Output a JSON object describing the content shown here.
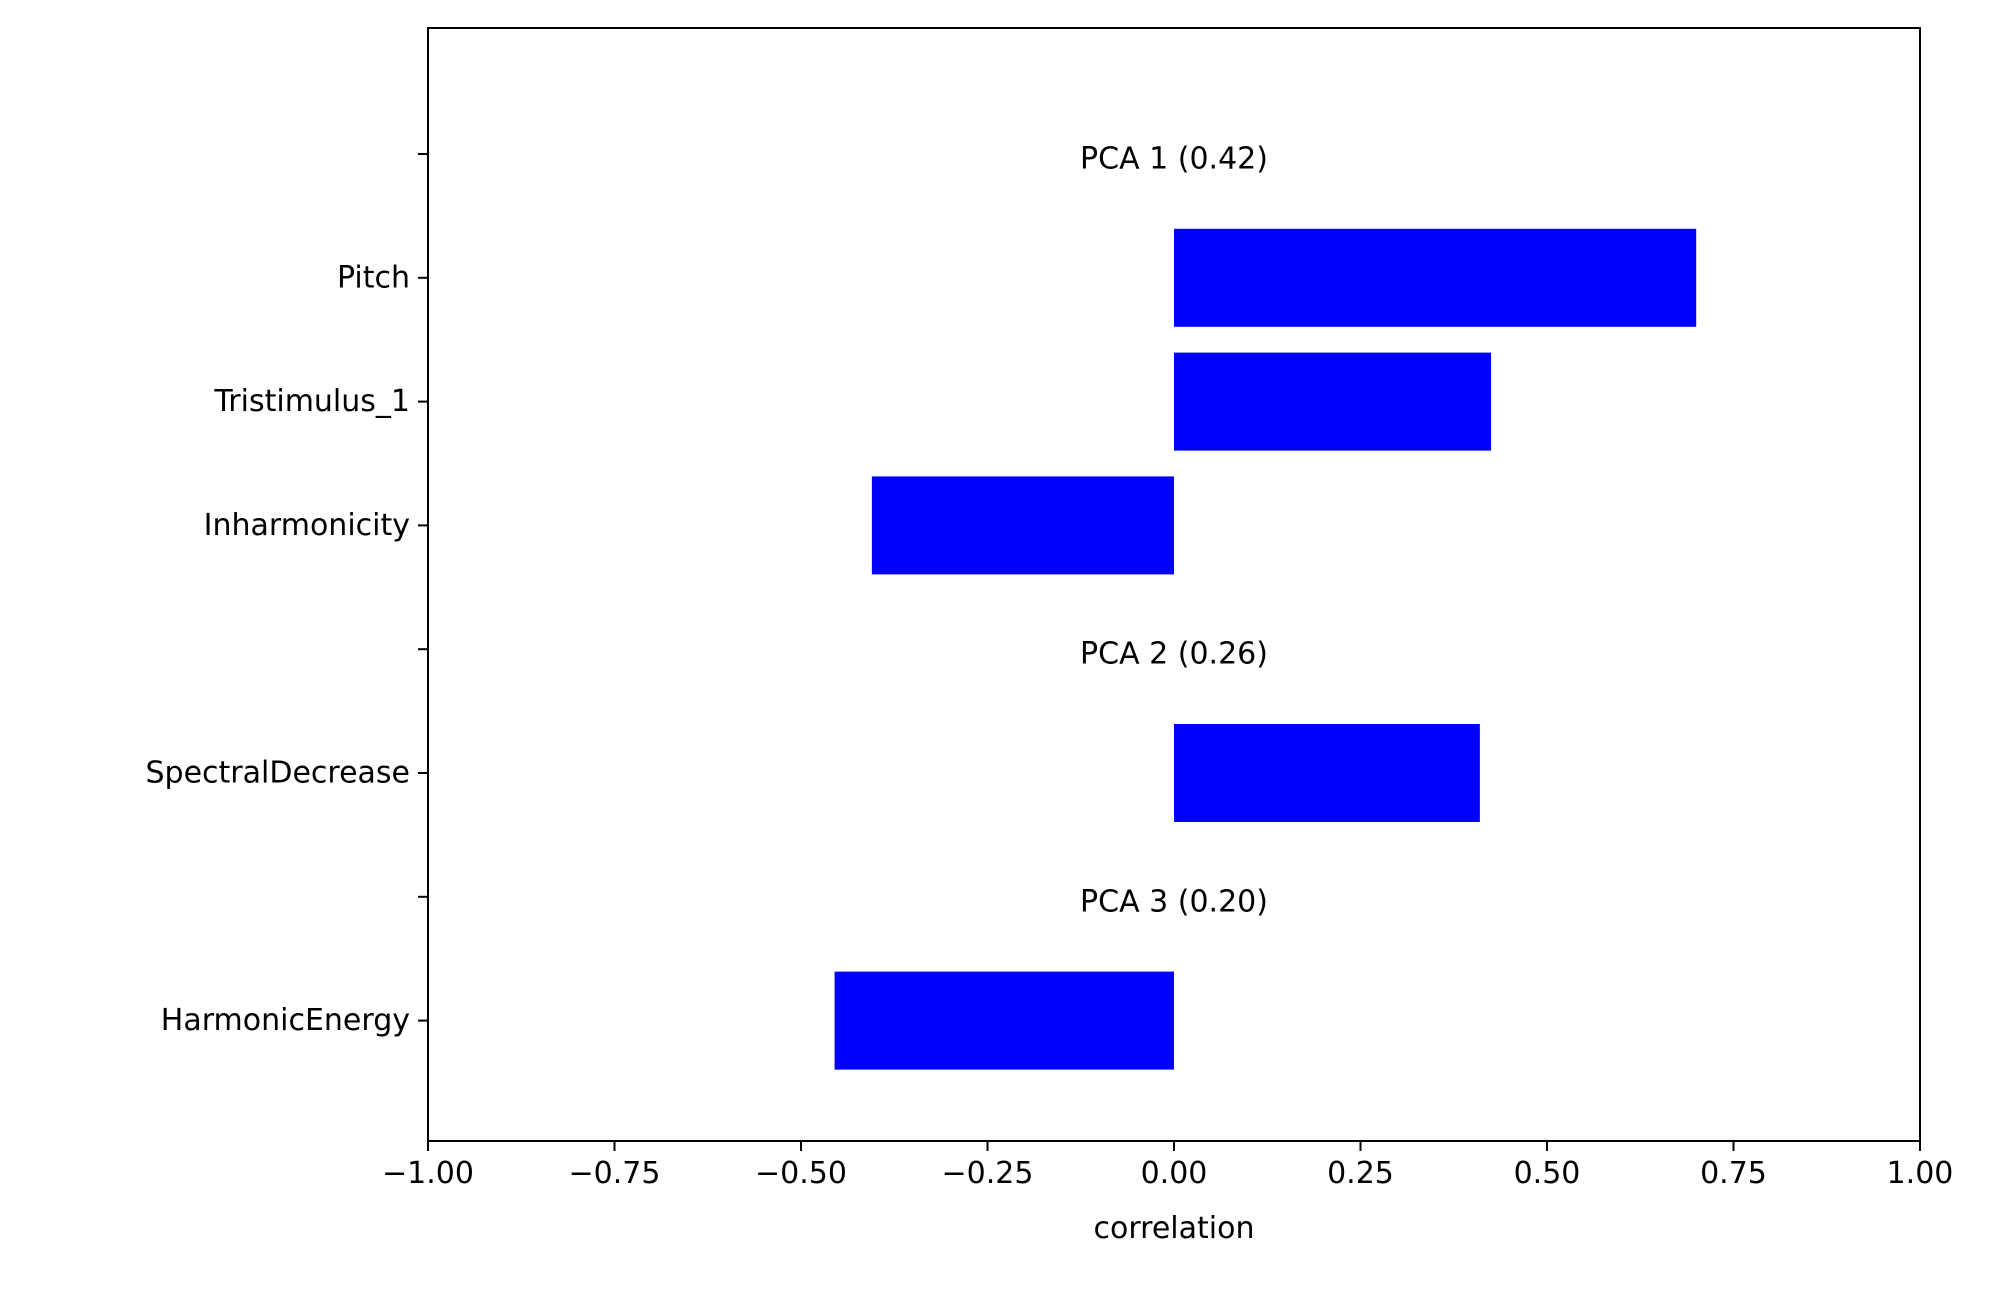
{
  "chart_data": {
    "type": "bar",
    "orientation": "horizontal",
    "xlabel": "correlation",
    "xlim": [
      -1.0,
      1.0
    ],
    "xticks": [
      -1.0,
      -0.75,
      -0.5,
      -0.25,
      0.0,
      0.25,
      0.5,
      0.75,
      1.0
    ],
    "xtick_labels": [
      "−1.00",
      "−0.75",
      "−0.50",
      "−0.25",
      "0.00",
      "0.25",
      "0.50",
      "0.75",
      "1.00"
    ],
    "grid": false,
    "bar_color": "#0000ff",
    "rows": [
      {
        "kind": "group",
        "label": "PCA 1 (0.42)"
      },
      {
        "kind": "bar",
        "label": "Pitch",
        "value": 0.7
      },
      {
        "kind": "bar",
        "label": "Tristimulus_1",
        "value": 0.425
      },
      {
        "kind": "bar",
        "label": "Inharmonicity",
        "value": -0.405
      },
      {
        "kind": "group",
        "label": "PCA 2 (0.26)"
      },
      {
        "kind": "bar",
        "label": "SpectralDecrease",
        "value": 0.41
      },
      {
        "kind": "group",
        "label": "PCA 3 (0.20)"
      },
      {
        "kind": "bar",
        "label": "HarmonicEnergy",
        "value": -0.455
      }
    ]
  }
}
